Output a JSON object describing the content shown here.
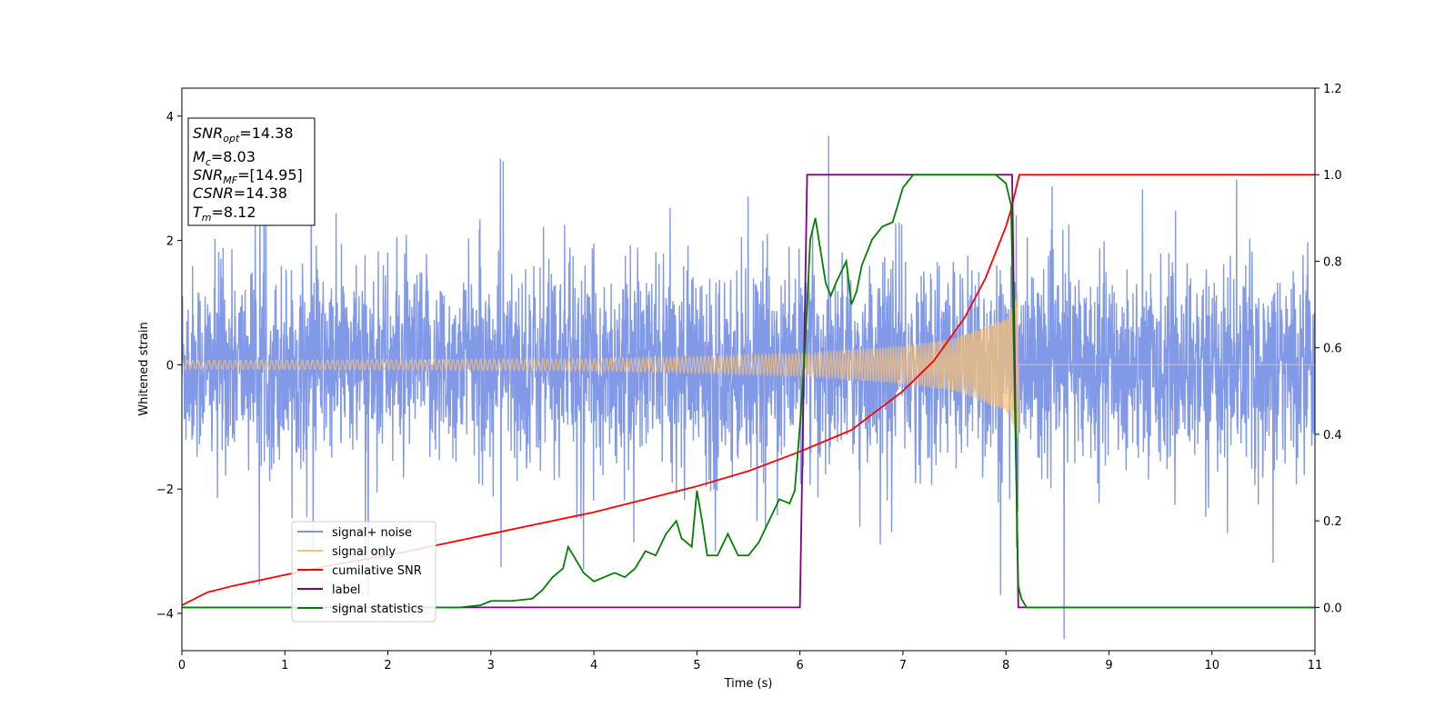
{
  "chart_data": {
    "type": "line",
    "xlabel": "Time (s)",
    "ylabel": "Whitened strain",
    "xlim": [
      0,
      11
    ],
    "ylim_left": [
      -4.6,
      4.45
    ],
    "ylim_right": [
      -0.1,
      1.2
    ],
    "x_ticks": [
      0,
      1,
      2,
      3,
      4,
      5,
      6,
      7,
      8,
      9,
      10,
      11
    ],
    "y_ticks_left": [
      -4,
      -2,
      0,
      2,
      4
    ],
    "y_ticks_right": [
      "0.0",
      "0.2",
      "0.4",
      "0.6",
      "0.8",
      "1.0",
      "1.2"
    ],
    "grid": false,
    "legend_position": "lower-left",
    "annotation": {
      "snr_opt": {
        "label": "SNR",
        "sub": "opt",
        "value": "=14.38"
      },
      "mc": {
        "label": "M",
        "sub": "c",
        "value": "=8.03"
      },
      "snr_mf": {
        "label": "SNR",
        "sub": "MF",
        "value": "=[14.95]"
      },
      "csnr": {
        "label": "CSNR",
        "value": "=14.38"
      },
      "tm": {
        "label": "T",
        "sub": "m",
        "value": "=8.12"
      }
    },
    "series": [
      {
        "name": "signal+ noise",
        "axis": "left",
        "color": "#7b93e6",
        "description_values": {
          "noise_sigma": 0.75,
          "merger_time": 8.12
        }
      },
      {
        "name": "signal only",
        "axis": "left",
        "color": "#f5c27a",
        "envelope": {
          "t": [
            0,
            2,
            4,
            5,
            6,
            7,
            7.5,
            8,
            8.1,
            8.12
          ],
          "amplitude": [
            0.07,
            0.08,
            0.1,
            0.13,
            0.18,
            0.3,
            0.42,
            0.75,
            1.1,
            1.6
          ]
        }
      },
      {
        "name": "cumilative SNR",
        "axis": "right",
        "color": "#ff0000",
        "x": [
          0,
          0.25,
          0.5,
          1,
          1.5,
          2,
          2.5,
          3,
          3.5,
          4,
          4.5,
          5,
          5.5,
          6,
          6.5,
          7,
          7.3,
          7.6,
          7.8,
          7.9,
          8.0,
          8.05,
          8.1,
          8.13,
          11
        ],
        "y": [
          0.005,
          0.035,
          0.05,
          0.075,
          0.1,
          0.12,
          0.145,
          0.17,
          0.195,
          0.22,
          0.25,
          0.28,
          0.315,
          0.36,
          0.41,
          0.5,
          0.57,
          0.67,
          0.76,
          0.82,
          0.88,
          0.92,
          0.97,
          1.0,
          1.0
        ]
      },
      {
        "name": "label",
        "axis": "right",
        "color": "#800080",
        "x": [
          0,
          6.0,
          6.07,
          8.06,
          8.12,
          11
        ],
        "y": [
          0,
          0,
          1.0,
          1.0,
          0,
          0
        ]
      },
      {
        "name": "signal statistics",
        "axis": "right",
        "color": "#008000",
        "x": [
          0,
          0.5,
          1,
          2,
          2.7,
          2.9,
          3.0,
          3.2,
          3.4,
          3.5,
          3.6,
          3.7,
          3.75,
          3.8,
          3.9,
          4.0,
          4.1,
          4.2,
          4.3,
          4.4,
          4.5,
          4.6,
          4.7,
          4.8,
          4.85,
          4.95,
          5.0,
          5.05,
          5.1,
          5.2,
          5.3,
          5.4,
          5.5,
          5.6,
          5.7,
          5.8,
          5.9,
          5.95,
          6.0,
          6.05,
          6.1,
          6.15,
          6.25,
          6.3,
          6.35,
          6.45,
          6.5,
          6.55,
          6.6,
          6.7,
          6.8,
          6.9,
          7.0,
          7.1,
          7.3,
          7.5,
          7.7,
          7.9,
          8.0,
          8.05,
          8.1,
          8.12,
          8.15,
          8.2,
          9,
          10,
          11
        ],
        "y": [
          0,
          0.0,
          0.0,
          0.0,
          0.0,
          0.005,
          0.015,
          0.015,
          0.02,
          0.04,
          0.07,
          0.09,
          0.14,
          0.12,
          0.08,
          0.06,
          0.07,
          0.08,
          0.07,
          0.09,
          0.13,
          0.12,
          0.17,
          0.2,
          0.16,
          0.14,
          0.27,
          0.2,
          0.12,
          0.12,
          0.17,
          0.12,
          0.12,
          0.15,
          0.2,
          0.25,
          0.24,
          0.27,
          0.42,
          0.6,
          0.85,
          0.9,
          0.75,
          0.72,
          0.75,
          0.8,
          0.7,
          0.73,
          0.79,
          0.85,
          0.88,
          0.89,
          0.97,
          1.0,
          1.0,
          1.0,
          1.0,
          1.0,
          0.98,
          0.93,
          0.3,
          0.05,
          0.02,
          0.0,
          0.0,
          0.0,
          0.0
        ]
      }
    ]
  }
}
